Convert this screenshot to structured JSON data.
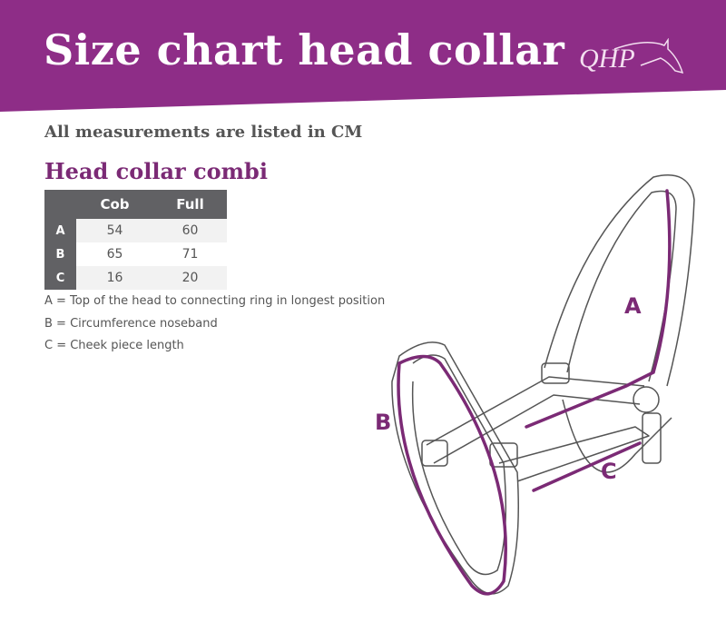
{
  "header": {
    "title": "Size chart head collar",
    "logo_text": "QHP",
    "brand_color": "#8e2d87"
  },
  "subtitle": "All measurements are listed in CM",
  "section_title": "Head collar combi",
  "table": {
    "columns": [
      "",
      "Cob",
      "Full"
    ],
    "rows": [
      {
        "label": "A",
        "cob": "54",
        "full": "60"
      },
      {
        "label": "B",
        "cob": "65",
        "full": "71"
      },
      {
        "label": "C",
        "cob": "16",
        "full": "20"
      }
    ]
  },
  "notes": [
    "A = Top of the head to connecting ring in longest position",
    "B = Circumference noseband",
    "C = Cheek piece length"
  ],
  "diagram": {
    "labels": [
      "A",
      "B",
      "C"
    ],
    "accent_color": "#7b2a75"
  }
}
